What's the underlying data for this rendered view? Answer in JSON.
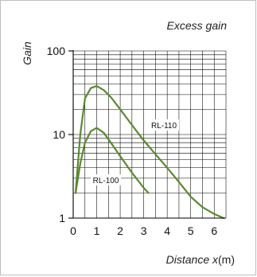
{
  "chart_data": {
    "type": "line",
    "title": "Excess gain",
    "ylabel": "Gain",
    "xlabel_prefix": "Distance ",
    "xlabel_var": "x",
    "xlabel_suffix": "(m)",
    "x_scale": "linear",
    "y_scale": "log",
    "xlim": [
      0,
      6.5
    ],
    "ylim": [
      1,
      100
    ],
    "grid": true,
    "x_ticks": [
      0,
      1,
      2,
      3,
      4,
      5,
      6
    ],
    "y_ticks": [
      1,
      10,
      100
    ],
    "series": [
      {
        "name": "RL-110",
        "color": "#5a8a2f",
        "x": [
          0.1,
          0.3,
          0.5,
          0.75,
          1.0,
          1.3,
          1.6,
          2.0,
          2.5,
          3.0,
          3.5,
          4.0,
          4.5,
          5.0,
          5.5,
          6.0,
          6.4
        ],
        "y": [
          2,
          10,
          27,
          36,
          38,
          34,
          28,
          20,
          13,
          8.5,
          5.8,
          4.0,
          2.7,
          1.8,
          1.35,
          1.12,
          1.0
        ]
      },
      {
        "name": "RL-100",
        "color": "#5a8a2f",
        "x": [
          0.1,
          0.3,
          0.5,
          0.75,
          1.0,
          1.3,
          1.6,
          2.0,
          2.5,
          3.0,
          3.2
        ],
        "y": [
          2,
          4.5,
          8,
          11,
          12,
          10.5,
          8,
          5.5,
          3.5,
          2.3,
          2.0
        ]
      }
    ]
  }
}
